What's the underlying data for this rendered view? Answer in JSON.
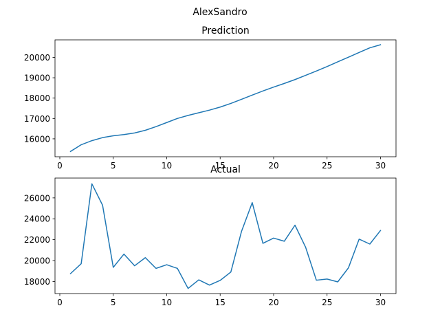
{
  "figure": {
    "suptitle": "AlexSandro"
  },
  "chart_data": [
    {
      "type": "line",
      "title": "Prediction",
      "xlabel": "",
      "ylabel": "",
      "grid": false,
      "xlim": [
        -0.45,
        31.45
      ],
      "ylim": [
        15120,
        20860
      ],
      "xticks": [
        0,
        5,
        10,
        15,
        20,
        25,
        30
      ],
      "yticks": [
        16000,
        17000,
        18000,
        19000,
        20000
      ],
      "color": "#1f77b4",
      "x": [
        1,
        2,
        3,
        4,
        5,
        6,
        7,
        8,
        9,
        10,
        11,
        12,
        13,
        14,
        15,
        16,
        17,
        18,
        19,
        20,
        21,
        22,
        23,
        24,
        25,
        26,
        27,
        28,
        29,
        30
      ],
      "values": [
        15380,
        15710,
        15910,
        16060,
        16150,
        16210,
        16290,
        16420,
        16600,
        16800,
        17000,
        17150,
        17280,
        17410,
        17560,
        17740,
        17940,
        18150,
        18350,
        18540,
        18720,
        18910,
        19120,
        19330,
        19550,
        19780,
        20010,
        20240,
        20470,
        20620
      ]
    },
    {
      "type": "line",
      "title": "Actual",
      "xlabel": "",
      "ylabel": "",
      "grid": false,
      "xlim": [
        -0.45,
        31.45
      ],
      "ylim": [
        16840,
        27900
      ],
      "xticks": [
        0,
        5,
        10,
        15,
        20,
        25,
        30
      ],
      "yticks": [
        18000,
        20000,
        22000,
        24000,
        26000
      ],
      "color": "#1f77b4",
      "x": [
        1,
        2,
        3,
        4,
        5,
        6,
        7,
        8,
        9,
        10,
        11,
        12,
        13,
        14,
        15,
        16,
        17,
        18,
        19,
        20,
        21,
        22,
        23,
        24,
        25,
        26,
        27,
        28,
        29,
        30
      ],
      "values": [
        18750,
        19700,
        27350,
        25300,
        19350,
        20620,
        19500,
        20280,
        19250,
        19600,
        19250,
        17330,
        18150,
        17650,
        18100,
        18900,
        22800,
        25550,
        21650,
        22150,
        21850,
        23390,
        21260,
        18120,
        18230,
        17960,
        19300,
        22050,
        21580,
        22880
      ]
    }
  ]
}
